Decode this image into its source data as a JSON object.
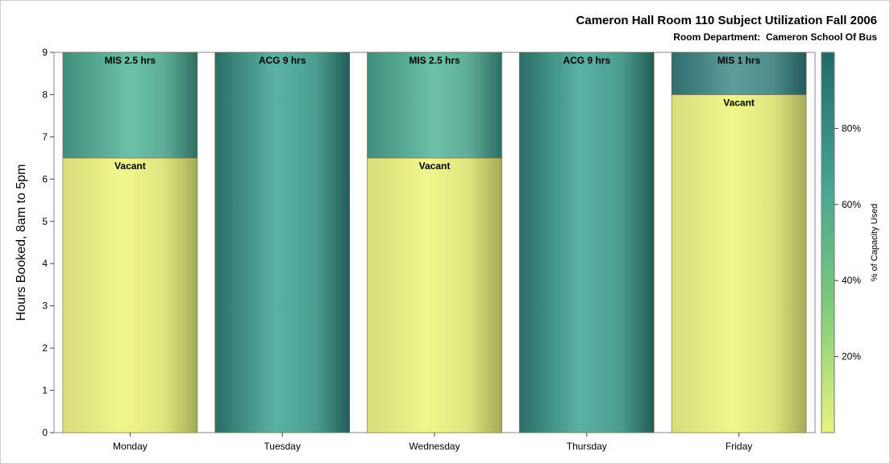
{
  "chart_data": {
    "type": "bar",
    "stacked": true,
    "title": "Cameron Hall Room 110 Subject Utilization Fall 2006",
    "subtitle_label": "Room Department:",
    "subtitle_value": "Cameron School Of Bus",
    "xlabel": "",
    "ylabel": "Hours Booked, 8am to 5pm",
    "ylim": [
      0,
      9
    ],
    "yticks": [
      "0",
      "1",
      "2",
      "3",
      "4",
      "5",
      "6",
      "7",
      "8",
      "9"
    ],
    "categories": [
      "Monday",
      "Tuesday",
      "Wednesday",
      "Thursday",
      "Friday"
    ],
    "bars": [
      {
        "segments": [
          {
            "value": 6.5,
            "label": "Vacant",
            "capacity_pct": 0
          },
          {
            "value": 2.5,
            "label": "MIS 2.5 hrs",
            "capacity_pct": 70
          }
        ]
      },
      {
        "segments": [
          {
            "value": 9,
            "label": "ACG 9 hrs",
            "capacity_pct": 80
          }
        ]
      },
      {
        "segments": [
          {
            "value": 6.5,
            "label": "Vacant",
            "capacity_pct": 0
          },
          {
            "value": 2.5,
            "label": "MIS 2.5 hrs",
            "capacity_pct": 70
          }
        ]
      },
      {
        "segments": [
          {
            "value": 9,
            "label": "ACG 9 hrs",
            "capacity_pct": 80
          }
        ]
      },
      {
        "segments": [
          {
            "value": 8,
            "label": "Vacant",
            "capacity_pct": 0
          },
          {
            "value": 1,
            "label": "MIS 1 hrs",
            "capacity_pct": 90
          }
        ]
      }
    ],
    "colorbar": {
      "label": "% of Capacity Used",
      "ticks": [
        "20%",
        "40%",
        "60%",
        "80%"
      ],
      "tick_values": [
        20,
        40,
        60,
        80
      ],
      "range": [
        0,
        100
      ],
      "colors": [
        "#e8f47c",
        "#79c97a",
        "#45a592",
        "#1f6b6b"
      ]
    },
    "grid": false,
    "legend": "right"
  }
}
